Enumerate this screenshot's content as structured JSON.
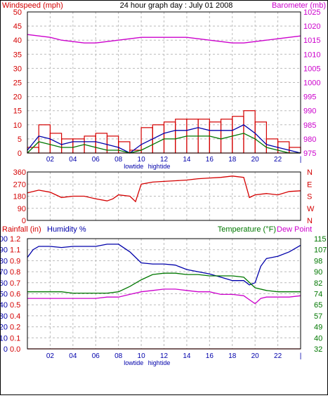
{
  "colors": {
    "red": "#d40000",
    "magenta": "#cc00cc",
    "blue": "#0000aa",
    "green": "#007700",
    "grid": "#bbbbbb"
  },
  "panel1": {
    "title": "24 hour graph day : July 01 2008",
    "left_label": "Windspeed (mph)",
    "right_label": "Barometer (mb)",
    "left_ticks": [
      "0",
      "5",
      "10",
      "15",
      "20",
      "25",
      "30",
      "35",
      "40",
      "45",
      "50"
    ],
    "right_ticks": [
      "975",
      "980",
      "985",
      "990",
      "995",
      "1000",
      "1005",
      "1010",
      "1015",
      "1020",
      "1025"
    ],
    "x_ticks": [
      "02",
      "04",
      "06",
      "08",
      "10",
      "12",
      "14",
      "16",
      "18",
      "20",
      "22",
      "|"
    ],
    "tide_low": "lowtide",
    "tide_high": "hightide"
  },
  "panel2": {
    "left_ticks": [
      "0",
      "90",
      "180",
      "270",
      "360"
    ],
    "right_letters": [
      "N",
      "W",
      "S",
      "E",
      "N"
    ]
  },
  "panel3": {
    "rain_label": "Rainfall (in)",
    "humidity_label": "Humidity %",
    "temp_label": "Temperature (°F)",
    "dew_label": "Dew Point",
    "humidity_ticks": [
      "0",
      "10",
      "20",
      "30",
      "40",
      "50",
      "60",
      "70",
      "80",
      "90",
      "100"
    ],
    "rain_ticks": [
      "0.0",
      "0.1",
      "0.2",
      "0.4",
      "0.5",
      "0.6",
      "0.7",
      "0.8",
      "0.9",
      "1.1",
      "1.2"
    ],
    "temp_ticks": [
      "32",
      "40",
      "49",
      "57",
      "65",
      "74",
      "82",
      "90",
      "98",
      "107",
      "115"
    ],
    "x_ticks": [
      "02",
      "04",
      "06",
      "08",
      "10",
      "12",
      "14",
      "16",
      "18",
      "20",
      "22",
      "|"
    ],
    "tide_low": "lowtide",
    "tide_high": "hightide"
  },
  "chart_data": [
    {
      "type": "line",
      "title": "24 hour graph day : July 01 2008",
      "x_unit": "hour",
      "xlim": [
        0,
        24
      ],
      "ylim_left": [
        0,
        50
      ],
      "ylim_right": [
        975,
        1025
      ],
      "series": [
        {
          "name": "Windspeed (mph)",
          "axis": "left",
          "color": "#d40000",
          "kind": "gust",
          "x": [
            0,
            1,
            2,
            3,
            4,
            5,
            6,
            7,
            8,
            9,
            10,
            11,
            12,
            13,
            14,
            15,
            16,
            17,
            18,
            19,
            20,
            21,
            22,
            23,
            24
          ],
          "y": [
            2,
            10,
            7,
            5,
            5,
            6,
            7,
            6,
            4,
            1,
            9,
            10,
            11,
            12,
            12,
            12,
            11,
            12,
            13,
            15,
            11,
            5,
            4,
            2,
            1
          ]
        },
        {
          "axis": "left",
          "color": "#0000aa",
          "kind": "average",
          "x": [
            0,
            1,
            2,
            3,
            4,
            5,
            6,
            7,
            8,
            9,
            10,
            11,
            12,
            13,
            14,
            15,
            16,
            17,
            18,
            19,
            20,
            21,
            22,
            23,
            24
          ],
          "y": [
            1,
            6,
            5,
            3,
            4,
            4,
            4,
            3,
            2,
            0,
            3,
            5,
            7,
            8,
            8,
            9,
            8,
            8,
            8,
            10,
            7,
            3,
            2,
            1,
            0
          ]
        },
        {
          "axis": "left",
          "color": "#007700",
          "kind": "average",
          "x": [
            0,
            1,
            2,
            3,
            4,
            5,
            6,
            7,
            8,
            9,
            10,
            11,
            12,
            13,
            14,
            15,
            16,
            17,
            18,
            19,
            20,
            21,
            22,
            23,
            24
          ],
          "y": [
            0,
            4,
            3,
            2,
            2,
            3,
            2,
            1,
            1,
            0,
            1,
            3,
            5,
            5,
            6,
            6,
            6,
            5,
            6,
            7,
            5,
            2,
            1,
            0,
            0
          ]
        },
        {
          "name": "Barometer (mb)",
          "axis": "right",
          "color": "#cc00cc",
          "x": [
            0,
            1,
            2,
            3,
            4,
            5,
            6,
            7,
            8,
            9,
            10,
            11,
            12,
            13,
            14,
            15,
            16,
            17,
            18,
            19,
            20,
            21,
            22,
            23,
            24
          ],
          "y": [
            1017,
            1016.5,
            1016,
            1015,
            1014.5,
            1014,
            1014,
            1014.5,
            1015,
            1015.5,
            1016,
            1016,
            1016,
            1016,
            1016,
            1015.5,
            1015,
            1014.5,
            1014,
            1014,
            1014.5,
            1015,
            1015.5,
            1016,
            1016.5
          ]
        }
      ]
    },
    {
      "type": "line",
      "series_meaning": "wind direction (degrees)",
      "xlim": [
        0,
        24
      ],
      "ylim": [
        0,
        360
      ],
      "series": [
        {
          "axis": "left",
          "color": "#d40000",
          "x": [
            0,
            1,
            2,
            3,
            4,
            5,
            6,
            7,
            7.5,
            8,
            9,
            9.5,
            10,
            11,
            12,
            13,
            14,
            15,
            16,
            17,
            18,
            19,
            19.5,
            20,
            21,
            22,
            23,
            24
          ],
          "y": [
            205,
            225,
            210,
            170,
            180,
            180,
            160,
            145,
            160,
            190,
            180,
            140,
            270,
            285,
            290,
            295,
            300,
            310,
            315,
            320,
            330,
            320,
            170,
            190,
            200,
            190,
            215,
            220
          ]
        }
      ]
    },
    {
      "type": "line",
      "xlim": [
        0,
        24
      ],
      "ylim_left": [
        0,
        100
      ],
      "ylim_right": [
        32,
        115
      ],
      "series": [
        {
          "name": "Humidity %",
          "axis": "left",
          "color": "#0000aa",
          "x": [
            0,
            0.5,
            1,
            2,
            3,
            4,
            5,
            6,
            7,
            8,
            9,
            10,
            11,
            12,
            13,
            14,
            15,
            16,
            17,
            18,
            19,
            19.5,
            20,
            20.5,
            21,
            22,
            23,
            24
          ],
          "y": [
            83,
            90,
            93,
            93,
            92,
            93,
            93,
            93,
            95,
            95,
            88,
            78,
            77,
            77,
            76,
            72,
            70,
            68,
            65,
            62,
            62,
            58,
            60,
            75,
            82,
            84,
            88,
            94
          ]
        },
        {
          "name": "Temperature (°F)",
          "axis": "right",
          "color": "#007700",
          "x": [
            0,
            1,
            2,
            3,
            4,
            5,
            6,
            7,
            8,
            9,
            10,
            11,
            12,
            13,
            14,
            15,
            16,
            17,
            18,
            19,
            20,
            21,
            22,
            23,
            24
          ],
          "y": [
            75,
            75,
            75,
            75,
            74,
            74,
            74,
            74,
            75,
            79,
            84,
            88,
            89,
            89,
            88,
            88,
            87,
            87,
            87,
            86,
            78,
            76,
            75,
            75,
            75
          ]
        },
        {
          "name": "Dew Point",
          "axis": "right",
          "color": "#cc00cc",
          "x": [
            0,
            1,
            2,
            3,
            4,
            5,
            6,
            7,
            8,
            9,
            10,
            11,
            12,
            13,
            14,
            15,
            16,
            17,
            18,
            19,
            19.5,
            20,
            20.5,
            21,
            22,
            23,
            24
          ],
          "y": [
            70,
            70,
            70,
            70,
            70,
            70,
            70,
            71,
            71,
            73,
            75,
            76,
            77,
            77,
            76,
            75,
            75,
            73,
            73,
            72,
            69,
            66,
            70,
            71,
            71,
            71,
            72
          ]
        },
        {
          "name": "Rainfall (in)",
          "axis": "rain",
          "color": "#d40000",
          "x": [
            0,
            24
          ],
          "y": [
            0,
            0
          ]
        }
      ]
    }
  ]
}
